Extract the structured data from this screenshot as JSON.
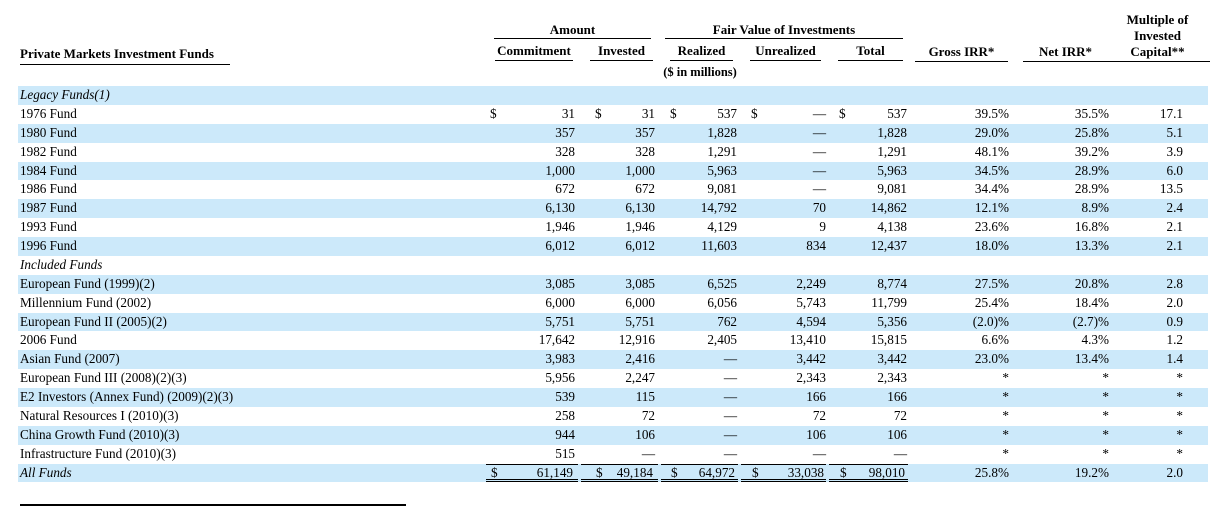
{
  "header": {
    "fund_column_label": "Private Markets Investment Funds",
    "amount_group_label": "Amount",
    "fair_value_group_label": "Fair Value of Investments",
    "subcolumns": {
      "commitment": "Commitment",
      "invested": "Invested",
      "realized": "Realized",
      "unrealized": "Unrealized",
      "total": "Total"
    },
    "gross_irr_label": "Gross IRR*",
    "net_irr_label": "Net IRR*",
    "multiple_label_lines": [
      "Multiple of",
      "Invested",
      "Capital**"
    ],
    "units_note": "($ in millions)"
  },
  "colors": {
    "row_shade": "#cce9fa",
    "text": "#000000"
  },
  "rows": [
    {
      "name": "Legacy Funds(1)",
      "type": "section",
      "shaded": true
    },
    {
      "name": "1976 Fund",
      "shaded": false,
      "dollar": true,
      "vals": [
        "31",
        "31",
        "537",
        "—",
        "537"
      ],
      "irr": [
        "39.5%",
        "35.5%",
        "17.1"
      ]
    },
    {
      "name": "1980 Fund",
      "shaded": true,
      "vals": [
        "357",
        "357",
        "1,828",
        "—",
        "1,828"
      ],
      "irr": [
        "29.0%",
        "25.8%",
        "5.1"
      ]
    },
    {
      "name": "1982 Fund",
      "shaded": false,
      "vals": [
        "328",
        "328",
        "1,291",
        "—",
        "1,291"
      ],
      "irr": [
        "48.1%",
        "39.2%",
        "3.9"
      ]
    },
    {
      "name": "1984 Fund",
      "shaded": true,
      "vals": [
        "1,000",
        "1,000",
        "5,963",
        "—",
        "5,963"
      ],
      "irr": [
        "34.5%",
        "28.9%",
        "6.0"
      ]
    },
    {
      "name": "1986 Fund",
      "shaded": false,
      "vals": [
        "672",
        "672",
        "9,081",
        "—",
        "9,081"
      ],
      "irr": [
        "34.4%",
        "28.9%",
        "13.5"
      ]
    },
    {
      "name": "1987 Fund",
      "shaded": true,
      "vals": [
        "6,130",
        "6,130",
        "14,792",
        "70",
        "14,862"
      ],
      "irr": [
        "12.1%",
        "8.9%",
        "2.4"
      ]
    },
    {
      "name": "1993 Fund",
      "shaded": false,
      "vals": [
        "1,946",
        "1,946",
        "4,129",
        "9",
        "4,138"
      ],
      "irr": [
        "23.6%",
        "16.8%",
        "2.1"
      ]
    },
    {
      "name": "1996 Fund",
      "shaded": true,
      "vals": [
        "6,012",
        "6,012",
        "11,603",
        "834",
        "12,437"
      ],
      "irr": [
        "18.0%",
        "13.3%",
        "2.1"
      ]
    },
    {
      "name": "Included Funds",
      "type": "section",
      "shaded": false
    },
    {
      "name": "European Fund (1999)(2)",
      "shaded": true,
      "vals": [
        "3,085",
        "3,085",
        "6,525",
        "2,249",
        "8,774"
      ],
      "irr": [
        "27.5%",
        "20.8%",
        "2.8"
      ]
    },
    {
      "name": "Millennium Fund (2002)",
      "shaded": false,
      "vals": [
        "6,000",
        "6,000",
        "6,056",
        "5,743",
        "11,799"
      ],
      "irr": [
        "25.4%",
        "18.4%",
        "2.0"
      ]
    },
    {
      "name": "European Fund II (2005)(2)",
      "shaded": true,
      "vals": [
        "5,751",
        "5,751",
        "762",
        "4,594",
        "5,356"
      ],
      "irr": [
        "(2.0)%",
        "(2.7)%",
        "0.9"
      ]
    },
    {
      "name": "2006 Fund",
      "shaded": false,
      "vals": [
        "17,642",
        "12,916",
        "2,405",
        "13,410",
        "15,815"
      ],
      "irr": [
        "6.6%",
        "4.3%",
        "1.2"
      ]
    },
    {
      "name": "Asian Fund (2007)",
      "shaded": true,
      "vals": [
        "3,983",
        "2,416",
        "—",
        "3,442",
        "3,442"
      ],
      "irr": [
        "23.0%",
        "13.4%",
        "1.4"
      ]
    },
    {
      "name": "European Fund III (2008)(2)(3)",
      "shaded": false,
      "vals": [
        "5,956",
        "2,247",
        "—",
        "2,343",
        "2,343"
      ],
      "irr": [
        "*",
        "*",
        "*"
      ]
    },
    {
      "name": "E2 Investors (Annex Fund) (2009)(2)(3)",
      "shaded": true,
      "vals": [
        "539",
        "115",
        "—",
        "166",
        "166"
      ],
      "irr": [
        "*",
        "*",
        "*"
      ]
    },
    {
      "name": "Natural Resources I (2010)(3)",
      "shaded": false,
      "vals": [
        "258",
        "72",
        "—",
        "72",
        "72"
      ],
      "irr": [
        "*",
        "*",
        "*"
      ]
    },
    {
      "name": "China Growth Fund (2010)(3)",
      "shaded": true,
      "vals": [
        "944",
        "106",
        "—",
        "106",
        "106"
      ],
      "irr": [
        "*",
        "*",
        "*"
      ]
    },
    {
      "name": "Infrastructure Fund (2010)(3)",
      "shaded": false,
      "vals": [
        "515",
        "—",
        "—",
        "—",
        "—"
      ],
      "irr": [
        "*",
        "*",
        "*"
      ]
    },
    {
      "name": "All Funds",
      "type": "total",
      "shaded": true,
      "dollar": true,
      "vals": [
        "61,149",
        "49,184",
        "64,972",
        "33,038",
        "98,010"
      ],
      "irr": [
        "25.8%",
        "19.2%",
        "2.0"
      ]
    }
  ]
}
